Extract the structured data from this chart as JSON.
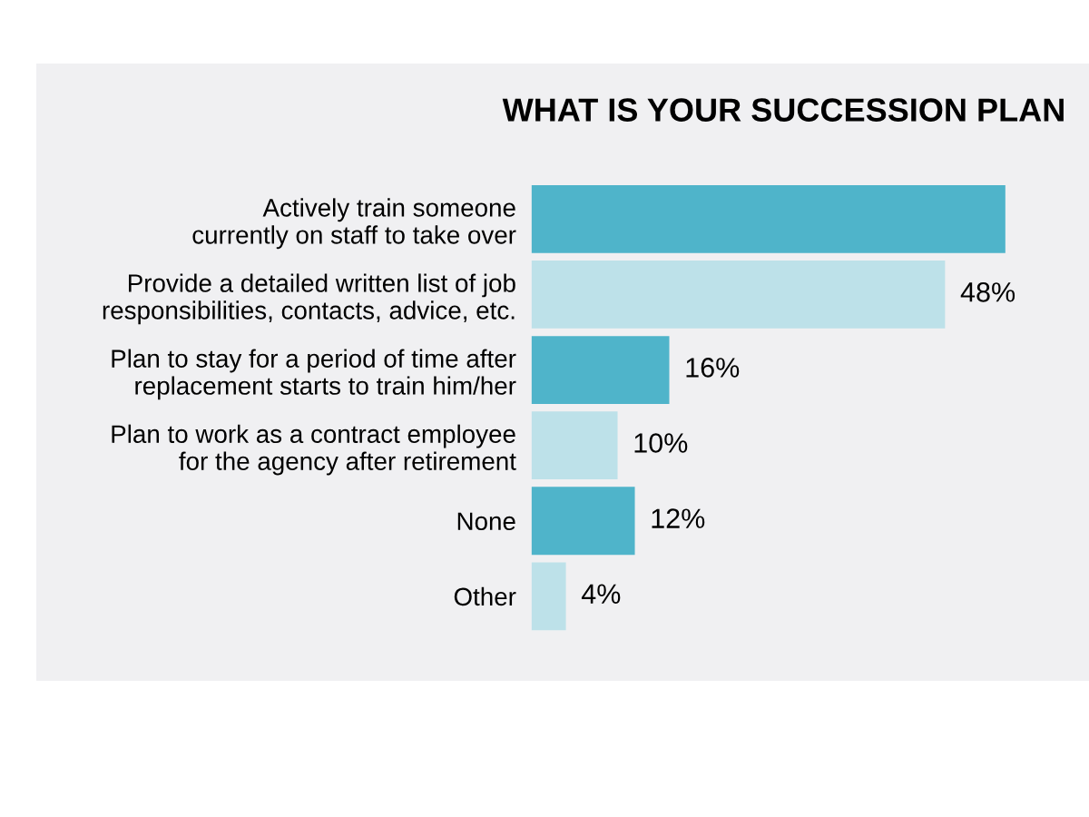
{
  "chart_data": {
    "type": "bar",
    "orientation": "horizontal",
    "title": "WHAT IS YOUR SUCCESSION PLAN",
    "categories": [
      "Actively train someone\ncurrently on staff to take over",
      "Provide a detailed written list of job\nresponsibilities, contacts, advice, etc.",
      "Plan to stay for a period of time after\nreplacement starts to train him/her",
      "Plan to work as a contract employee\nfor the agency after retirement",
      "None",
      "Other"
    ],
    "values": [
      55,
      48,
      16,
      10,
      12,
      4
    ],
    "colors": [
      "#4fb4ca",
      "#bde1e9",
      "#4fb4ca",
      "#bde1e9",
      "#4fb4ca",
      "#bde1e9"
    ],
    "value_labels": [
      null,
      "48%",
      "16%",
      "10%",
      "12%",
      "4%"
    ],
    "grid": false,
    "legend": false
  }
}
